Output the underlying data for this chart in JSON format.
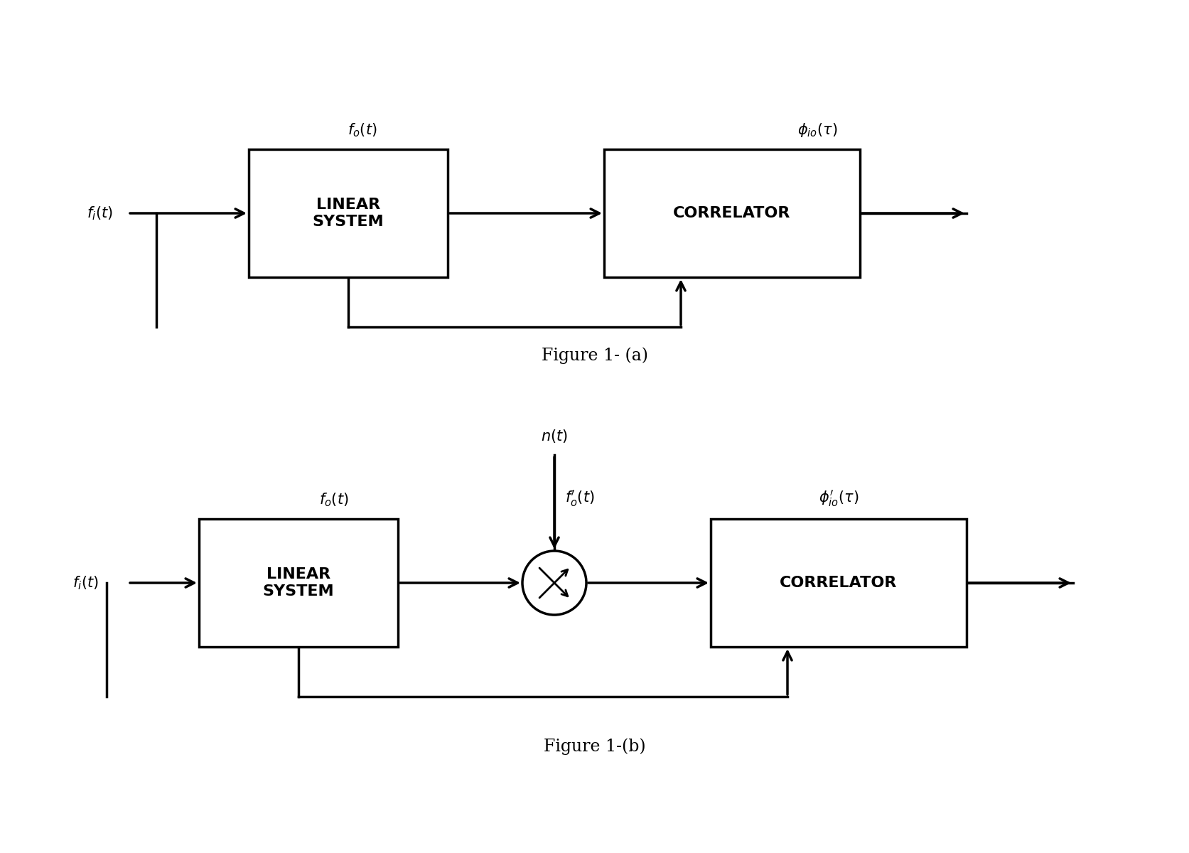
{
  "bg_color": "#ffffff",
  "line_color": "#000000",
  "fig_a_caption": "Figure 1- (a)",
  "fig_b_caption": "Figure 1-(b)",
  "fig_a_label_fi": "$f_i(t)$",
  "fig_a_label_fo": "$f_o(t)$",
  "fig_a_label_phi": "$\\phi_{io}(\\tau)$",
  "fig_a_box1_text": "LINEAR\nSYSTEM",
  "fig_a_box2_text": "CORRELATOR",
  "fig_b_label_fi": "$f_i(t)$",
  "fig_b_label_fo": "$f_o(t)$",
  "fig_b_label_fprime": "$f^{\\prime}_o(t)$",
  "fig_b_label_nt": "$n(t)$",
  "fig_b_label_phi": "$\\phi^{\\prime}_{io}(\\tau)$",
  "fig_b_box1_text": "LINEAR\nSYSTEM",
  "fig_b_box2_text": "CORRELATOR"
}
